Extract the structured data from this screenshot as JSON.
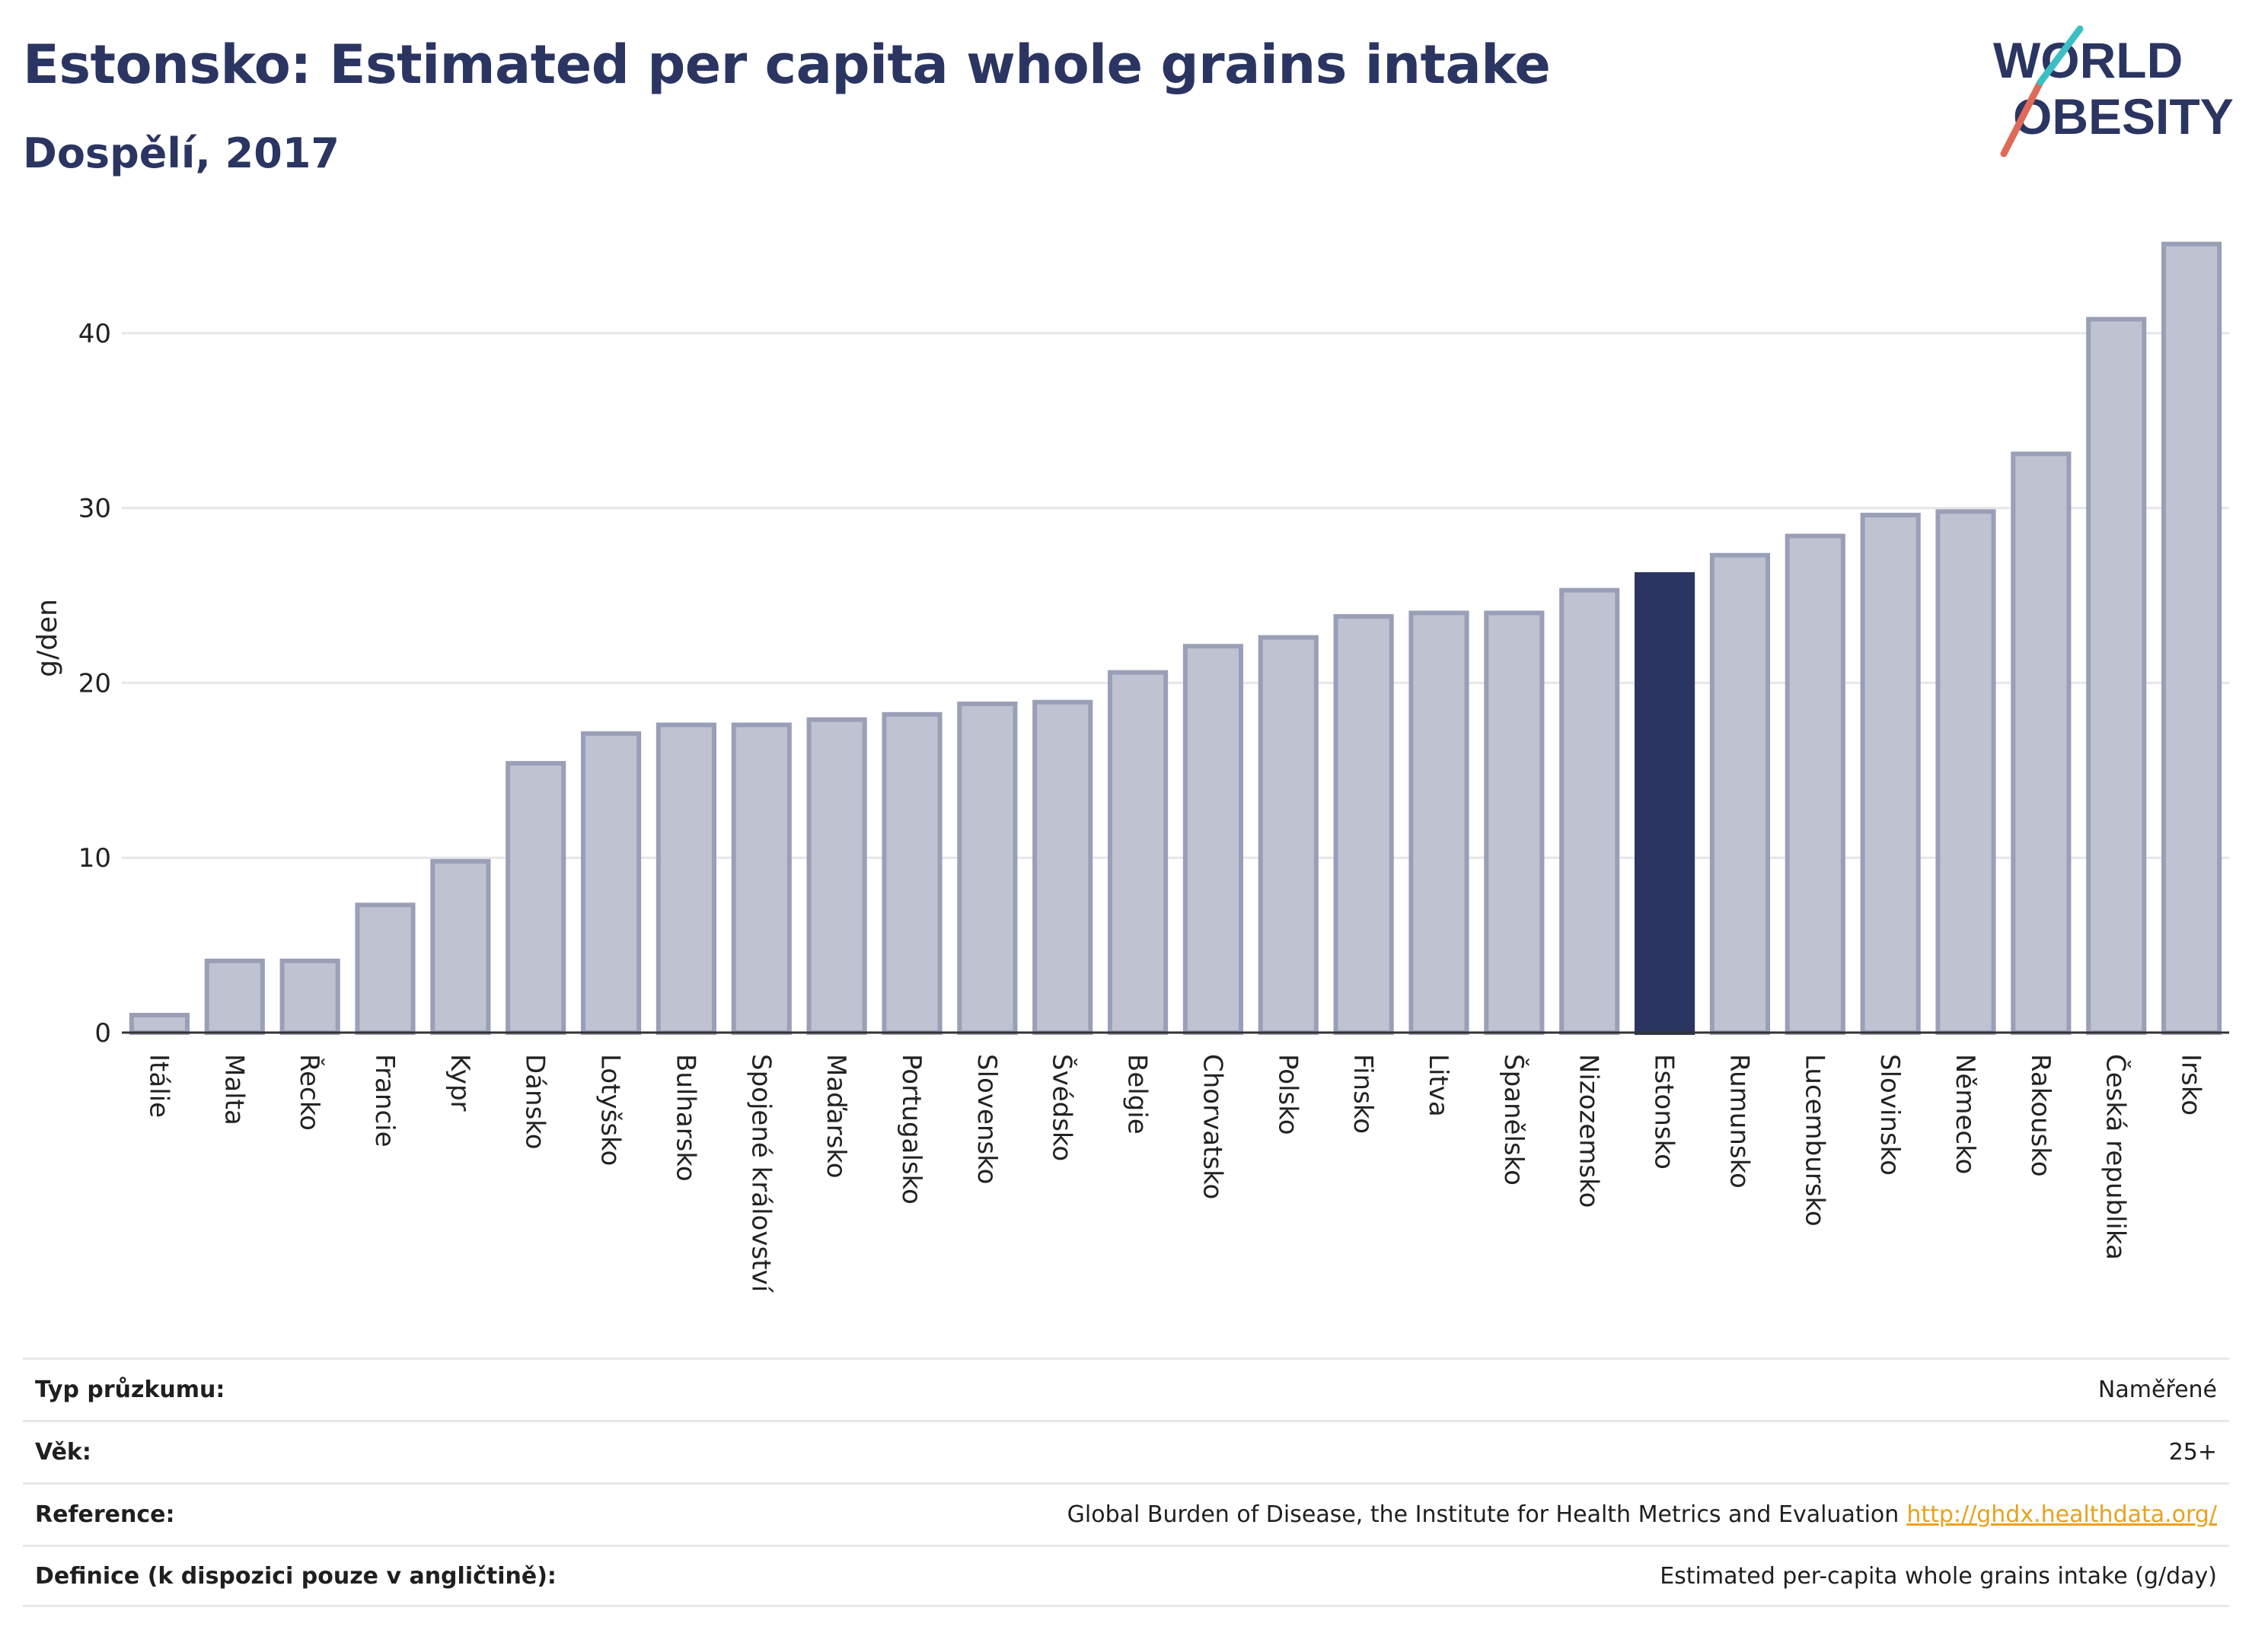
{
  "header": {
    "title": "Estonsko: Estimated per capita whole grains intake",
    "subtitle": "Dospělí, 2017",
    "logo_line1": "WORLD",
    "logo_line2": "OBESITY"
  },
  "colors": {
    "bar_default": "#bfc2d0",
    "bar_default_stroke": "#9a9fb8",
    "bar_highlight": "#2b3562",
    "text_dark": "#2b3562",
    "link": "#e8a21f",
    "logo_teal": "#3bbfc3",
    "logo_coral": "#e06a5a"
  },
  "chart_data": {
    "type": "bar",
    "ylabel": "g/den",
    "xlabel": "",
    "ylim": [
      0,
      46
    ],
    "yticks": [
      0,
      10,
      20,
      30,
      40
    ],
    "grid": true,
    "highlight": "Estonsko",
    "categories": [
      "Itálie",
      "Malta",
      "Řecko",
      "Francie",
      "Kypr",
      "Dánsko",
      "Lotyšsko",
      "Bulharsko",
      "Spojené království",
      "Maďarsko",
      "Portugalsko",
      "Slovensko",
      "Švédsko",
      "Belgie",
      "Chorvatsko",
      "Polsko",
      "Finsko",
      "Litva",
      "Španělsko",
      "Nizozemsko",
      "Estonsko",
      "Rumunsko",
      "Lucembursko",
      "Slovinsko",
      "Německo",
      "Rakousko",
      "Česká republika",
      "Irsko"
    ],
    "values": [
      1.0,
      4.1,
      4.1,
      7.3,
      9.8,
      15.4,
      17.1,
      17.6,
      17.6,
      17.9,
      18.2,
      18.8,
      18.9,
      20.6,
      22.1,
      22.6,
      23.8,
      24.0,
      24.0,
      25.3,
      26.2,
      27.3,
      28.4,
      29.6,
      29.8,
      33.1,
      40.8,
      45.1
    ]
  },
  "info": [
    {
      "label": "Typ průzkumu:",
      "value": "Naměřené",
      "link": ""
    },
    {
      "label": "Věk:",
      "value": "25+",
      "link": ""
    },
    {
      "label": "Reference:",
      "value": "Global Burden of Disease, the Institute for Health Metrics and Evaluation",
      "link": "http://ghdx.healthdata.org/"
    },
    {
      "label": "Definice (k dispozici pouze v angličtině):",
      "value": "Estimated per-capita whole grains intake (g/day)",
      "link": ""
    }
  ]
}
